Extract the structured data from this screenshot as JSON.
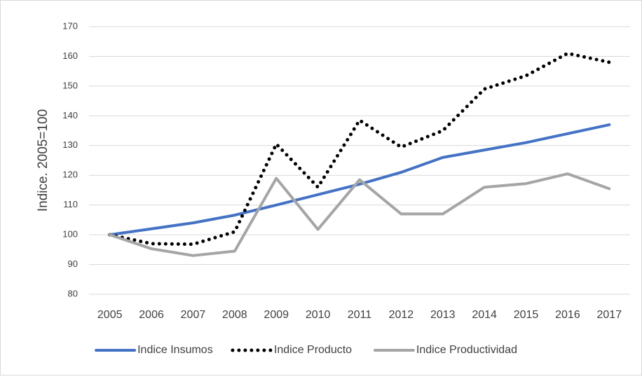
{
  "chart_data": {
    "type": "line",
    "y_label": "Indice. 2005=100",
    "categories": [
      "2005",
      "2006",
      "2007",
      "2008",
      "2009",
      "2010",
      "2011",
      "2012",
      "2013",
      "2014",
      "2015",
      "2016",
      "2017"
    ],
    "series": [
      {
        "name": "Indice Insumos",
        "color": "#4472c4",
        "line_style": "solid",
        "values": [
          100,
          102,
          104,
          106.6,
          110,
          113.5,
          117,
          121,
          126,
          128.5,
          131,
          134,
          137
        ]
      },
      {
        "name": "Indice Producto",
        "color": "#000000",
        "line_style": "dotted",
        "values": [
          100,
          97,
          96.8,
          101,
          130.5,
          116,
          138.5,
          129.5,
          135,
          149,
          153.5,
          161,
          158
        ]
      },
      {
        "name": "Indice Productividad",
        "color": "#a5a5a5",
        "line_style": "solid",
        "values": [
          100,
          95.3,
          93,
          94.5,
          119,
          101.8,
          118.5,
          107,
          107,
          116,
          117.2,
          120.5,
          115.5
        ]
      }
    ],
    "ylim": [
      80,
      170
    ],
    "yticks": [
      80,
      90,
      100,
      110,
      120,
      130,
      140,
      150,
      160,
      170
    ],
    "grid": true,
    "legend": "bottom"
  }
}
